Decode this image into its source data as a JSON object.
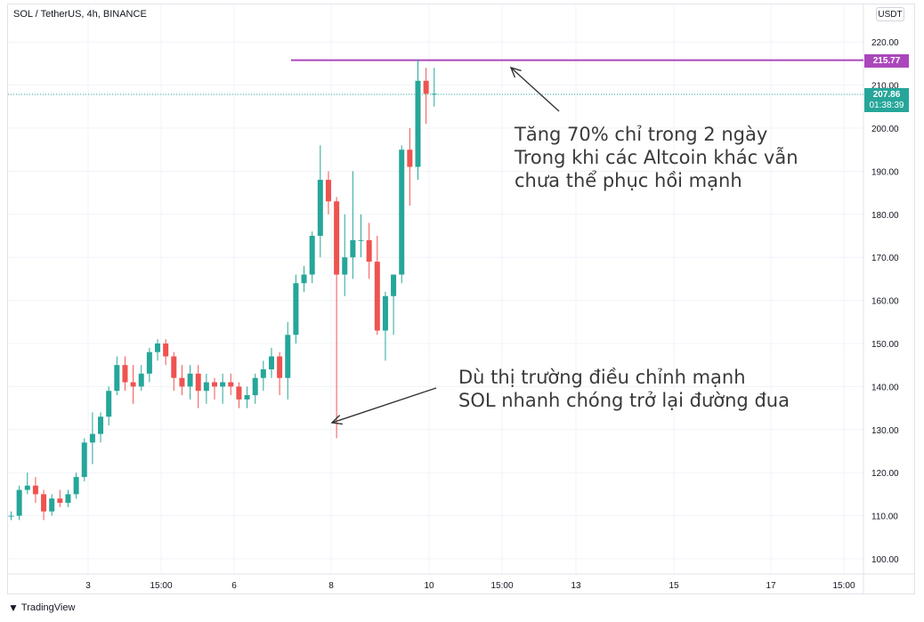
{
  "header": {
    "symbol_title": "SOL / TetherUS, 4h, BINANCE",
    "currency": "USDT"
  },
  "brand": {
    "logo_icon": "tradingview-logo-icon",
    "label": "TradingView"
  },
  "colors": {
    "up": "#26a69a",
    "down": "#ef5350",
    "resistance": "#ab47bc",
    "current_price": "#26a69a",
    "grid": "#f0f3fa",
    "arrow": "#333333"
  },
  "annotations": {
    "top_note": [
      "Tăng 70% chỉ trong 2 ngày",
      "Trong khi các Altcoin khác vẫn",
      "chưa thể phục hồi mạnh"
    ],
    "bottom_note": [
      "Dù thị trường điều chỉnh mạnh",
      "SOL nhanh chóng trở lại đường đua"
    ]
  },
  "price_tags": {
    "resistance_label": "215.77",
    "current_label": "207.86",
    "countdown": "01:38:39"
  },
  "chart_data": {
    "type": "candlestick",
    "title": "SOL / TetherUS, 4h, BINANCE",
    "y_ticks": [
      "100.00",
      "110.00",
      "120.00",
      "130.00",
      "140.00",
      "150.00",
      "160.00",
      "170.00",
      "180.00",
      "190.00",
      "200.00",
      "210.00",
      "220.00"
    ],
    "ylim": [
      95,
      224
    ],
    "x_ticks": [
      "3",
      "15:00",
      "6",
      "8",
      "10",
      "15:00",
      "13",
      "15",
      "17",
      "15:00"
    ],
    "grid": true,
    "horizontal_lines": [
      {
        "value": 215.77,
        "style": "solid"
      },
      {
        "value": 207.86,
        "style": "dotted"
      }
    ],
    "candles": [
      [
        110,
        111,
        109,
        110
      ],
      [
        110,
        117,
        109,
        116
      ],
      [
        116,
        120,
        115,
        117
      ],
      [
        117,
        119,
        113,
        115
      ],
      [
        115,
        116,
        109,
        111
      ],
      [
        111,
        115,
        110,
        114
      ],
      [
        114,
        116,
        112,
        113
      ],
      [
        113,
        116,
        112,
        115
      ],
      [
        115,
        120,
        114,
        119
      ],
      [
        119,
        128,
        118,
        127
      ],
      [
        127,
        134,
        122,
        129
      ],
      [
        129,
        134,
        127,
        133
      ],
      [
        133,
        140,
        131,
        139
      ],
      [
        139,
        147,
        138,
        145
      ],
      [
        145,
        147,
        139,
        141
      ],
      [
        141,
        145,
        136,
        140
      ],
      [
        140,
        145,
        139,
        143
      ],
      [
        143,
        149,
        141,
        148
      ],
      [
        148,
        151,
        146,
        150
      ],
      [
        150,
        151,
        145,
        147
      ],
      [
        147,
        148,
        139,
        142
      ],
      [
        142,
        145,
        138,
        140
      ],
      [
        140,
        145,
        137,
        143
      ],
      [
        143,
        145,
        135,
        139
      ],
      [
        139,
        143,
        136,
        141
      ],
      [
        141,
        142,
        137,
        140
      ],
      [
        140,
        143,
        136,
        141
      ],
      [
        141,
        143,
        138,
        140
      ],
      [
        140,
        141,
        135,
        137
      ],
      [
        137,
        140,
        135,
        138
      ],
      [
        138,
        143,
        136,
        142
      ],
      [
        142,
        146,
        139,
        144
      ],
      [
        144,
        149,
        142,
        147
      ],
      [
        147,
        148,
        138,
        142
      ],
      [
        142,
        155,
        137,
        152
      ],
      [
        152,
        166,
        150,
        164
      ],
      [
        164,
        168,
        162,
        166
      ],
      [
        166,
        176,
        164,
        175
      ],
      [
        175,
        196,
        170,
        188
      ],
      [
        188,
        190,
        180,
        183
      ],
      [
        183,
        184,
        128,
        166
      ],
      [
        166,
        180,
        161,
        170
      ],
      [
        170,
        190,
        165,
        174
      ],
      [
        174,
        180,
        170,
        174
      ],
      [
        174,
        178,
        165,
        169
      ],
      [
        169,
        175,
        152,
        153
      ],
      [
        153,
        162,
        146,
        161
      ],
      [
        161,
        166,
        152,
        166
      ],
      [
        166,
        196,
        164,
        195
      ],
      [
        195,
        200,
        182,
        191
      ],
      [
        191,
        216,
        188,
        211
      ],
      [
        211,
        214,
        201,
        208
      ],
      [
        208,
        214,
        205,
        208
      ]
    ]
  }
}
